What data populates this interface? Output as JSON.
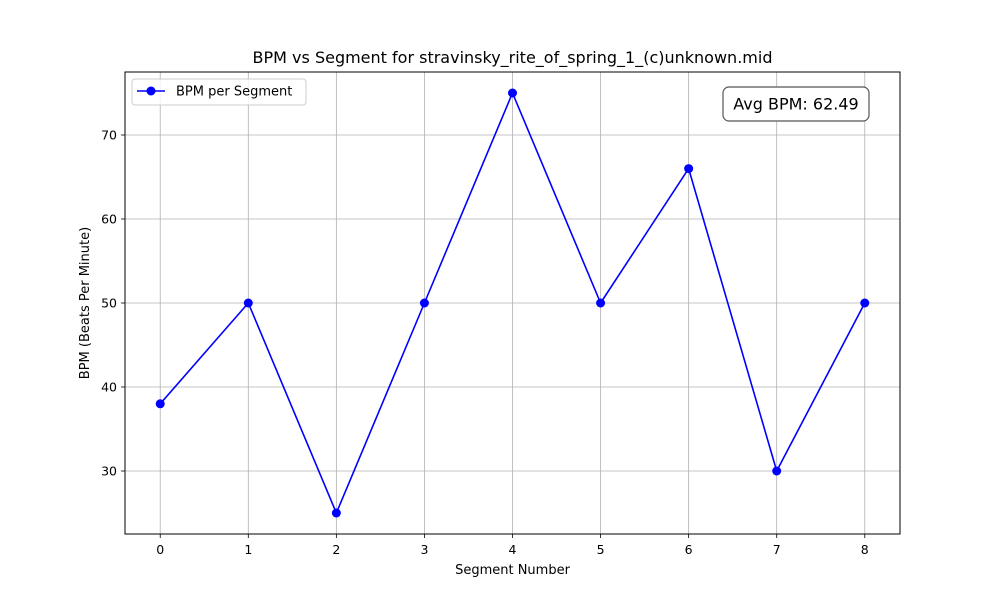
{
  "chart_data": {
    "type": "line",
    "title": "BPM vs Segment for stravinsky_rite_of_spring_1_(c)unknown.mid",
    "xlabel": "Segment Number",
    "ylabel": "BPM (Beats Per Minute)",
    "x": [
      0,
      1,
      2,
      3,
      4,
      5,
      6,
      7,
      8
    ],
    "series": [
      {
        "name": "BPM per Segment",
        "values": [
          38,
          50,
          25,
          50,
          75,
          50,
          66,
          30,
          50
        ],
        "color": "#0000ff",
        "marker": "circle"
      }
    ],
    "xticks": [
      0,
      1,
      2,
      3,
      4,
      5,
      6,
      7,
      8
    ],
    "yticks": [
      30,
      40,
      50,
      60,
      70
    ],
    "xlim": [
      -0.4,
      8.4
    ],
    "ylim": [
      22.5,
      77.5
    ],
    "grid": true,
    "legend_position": "top-left",
    "annotation": "Avg BPM: 62.49",
    "annotation_position": "top-right"
  }
}
